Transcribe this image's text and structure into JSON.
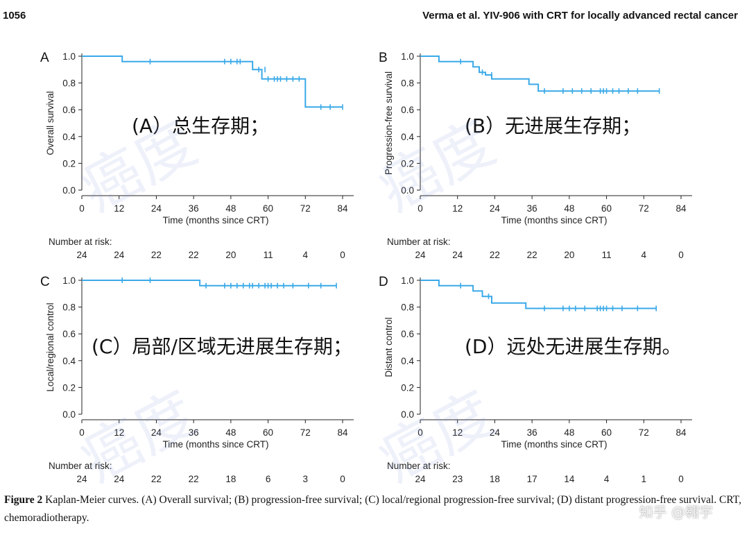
{
  "header": {
    "page_number": "1056",
    "running_title": "Verma et al. YIV-906 with CRT for locally advanced rectal cancer"
  },
  "colors": {
    "curve": "#39a9e8",
    "axis": "#222222"
  },
  "chart_data": [
    {
      "type": "line",
      "panel_letter": "A",
      "overlay_label": "(A）总生存期；",
      "ylabel": "Overall survival",
      "xlabel": "Time (months since CRT)",
      "xlim": [
        0,
        84
      ],
      "ylim": [
        0,
        1
      ],
      "x_ticks": [
        "0",
        "12",
        "24",
        "36",
        "48",
        "60",
        "72",
        "84"
      ],
      "y_ticks": [
        "0.0",
        "0.2",
        "0.4",
        "0.6",
        "0.8",
        "1.0"
      ],
      "step_points": [
        [
          0,
          1.0
        ],
        [
          13,
          1.0
        ],
        [
          13,
          0.96
        ],
        [
          55,
          0.96
        ],
        [
          55,
          0.9
        ],
        [
          58,
          0.9
        ],
        [
          58,
          0.83
        ],
        [
          61,
          0.83
        ],
        [
          72,
          0.83
        ],
        [
          72,
          0.62
        ],
        [
          84,
          0.62
        ]
      ],
      "censor_marks": [
        [
          22,
          0.96
        ],
        [
          46,
          0.96
        ],
        [
          48,
          0.96
        ],
        [
          50,
          0.96
        ],
        [
          51,
          0.96
        ],
        [
          57,
          0.9
        ],
        [
          59,
          0.9
        ],
        [
          60,
          0.83
        ],
        [
          62,
          0.83
        ],
        [
          63,
          0.83
        ],
        [
          64,
          0.83
        ],
        [
          66,
          0.83
        ],
        [
          68,
          0.83
        ],
        [
          70,
          0.83
        ],
        [
          77,
          0.62
        ],
        [
          80,
          0.62
        ],
        [
          84,
          0.62
        ]
      ],
      "risk_label": "Number at risk:",
      "risk_times": [
        0,
        12,
        24,
        36,
        48,
        60,
        72,
        84
      ],
      "risk_values": [
        "24",
        "24",
        "22",
        "22",
        "20",
        "11",
        "4",
        "0"
      ]
    },
    {
      "type": "line",
      "panel_letter": "B",
      "overlay_label": "(B）无进展生存期；",
      "ylabel": "Progression-free survival",
      "xlabel": "Time (months since CRT)",
      "xlim": [
        0,
        84
      ],
      "ylim": [
        0,
        1
      ],
      "x_ticks": [
        "0",
        "12",
        "24",
        "36",
        "48",
        "60",
        "72",
        "84"
      ],
      "y_ticks": [
        "0.0",
        "0.2",
        "0.4",
        "0.6",
        "0.8",
        "1.0"
      ],
      "step_points": [
        [
          0,
          1.0
        ],
        [
          6,
          1.0
        ],
        [
          6,
          0.96
        ],
        [
          17,
          0.96
        ],
        [
          17,
          0.92
        ],
        [
          19,
          0.92
        ],
        [
          19,
          0.88
        ],
        [
          21,
          0.88
        ],
        [
          21,
          0.86
        ],
        [
          23,
          0.86
        ],
        [
          23,
          0.83
        ],
        [
          35,
          0.83
        ],
        [
          35,
          0.79
        ],
        [
          38,
          0.79
        ],
        [
          38,
          0.74
        ],
        [
          77,
          0.74
        ]
      ],
      "censor_marks": [
        [
          13,
          0.96
        ],
        [
          20,
          0.88
        ],
        [
          23,
          0.86
        ],
        [
          40,
          0.74
        ],
        [
          46,
          0.74
        ],
        [
          49,
          0.74
        ],
        [
          52,
          0.74
        ],
        [
          55,
          0.74
        ],
        [
          58,
          0.74
        ],
        [
          59,
          0.74
        ],
        [
          60,
          0.74
        ],
        [
          62,
          0.74
        ],
        [
          64,
          0.74
        ],
        [
          67,
          0.74
        ],
        [
          70,
          0.74
        ],
        [
          77,
          0.74
        ]
      ],
      "risk_label": "Number at risk:",
      "risk_times": [
        0,
        12,
        24,
        36,
        48,
        60,
        72,
        84
      ],
      "risk_values": [
        "24",
        "24",
        "22",
        "22",
        "20",
        "11",
        "4",
        "0"
      ]
    },
    {
      "type": "line",
      "panel_letter": "C",
      "overlay_label": "(C）局部/区域无进展生存期；",
      "ylabel": "Local/regional control",
      "xlabel": "Time (months since CRT)",
      "xlim": [
        0,
        84
      ],
      "ylim": [
        0,
        1
      ],
      "x_ticks": [
        "0",
        "12",
        "24",
        "36",
        "48",
        "60",
        "72",
        "84"
      ],
      "y_ticks": [
        "0.0",
        "0.2",
        "0.4",
        "0.6",
        "0.8",
        "1.0"
      ],
      "step_points": [
        [
          0,
          1.0
        ],
        [
          38,
          1.0
        ],
        [
          38,
          0.96
        ],
        [
          82,
          0.96
        ]
      ],
      "censor_marks": [
        [
          13,
          1.0
        ],
        [
          22,
          1.0
        ],
        [
          40,
          0.96
        ],
        [
          46,
          0.96
        ],
        [
          48,
          0.96
        ],
        [
          50,
          0.96
        ],
        [
          52,
          0.96
        ],
        [
          54,
          0.96
        ],
        [
          55,
          0.96
        ],
        [
          57,
          0.96
        ],
        [
          59,
          0.96
        ],
        [
          60,
          0.96
        ],
        [
          61,
          0.96
        ],
        [
          63,
          0.96
        ],
        [
          65,
          0.96
        ],
        [
          68,
          0.96
        ],
        [
          73,
          0.96
        ],
        [
          77,
          0.96
        ],
        [
          82,
          0.96
        ]
      ],
      "risk_label": "Number at risk:",
      "risk_times": [
        0,
        12,
        24,
        36,
        48,
        60,
        72,
        84
      ],
      "risk_values": [
        "24",
        "24",
        "22",
        "22",
        "18",
        "6",
        "3",
        "0"
      ]
    },
    {
      "type": "line",
      "panel_letter": "D",
      "overlay_label": "(D）远处无进展生存期。",
      "ylabel": "Distant control",
      "xlabel": "Time (months since CRT)",
      "xlim": [
        0,
        84
      ],
      "ylim": [
        0,
        1
      ],
      "x_ticks": [
        "0",
        "12",
        "24",
        "36",
        "48",
        "60",
        "72",
        "84"
      ],
      "y_ticks": [
        "0.0",
        "0.2",
        "0.4",
        "0.6",
        "0.8",
        "1.0"
      ],
      "step_points": [
        [
          0,
          1.0
        ],
        [
          6,
          1.0
        ],
        [
          6,
          0.96
        ],
        [
          17,
          0.96
        ],
        [
          17,
          0.92
        ],
        [
          20,
          0.92
        ],
        [
          20,
          0.88
        ],
        [
          23,
          0.88
        ],
        [
          23,
          0.83
        ],
        [
          34,
          0.83
        ],
        [
          34,
          0.79
        ],
        [
          76,
          0.79
        ]
      ],
      "censor_marks": [
        [
          13,
          0.96
        ],
        [
          22,
          0.88
        ],
        [
          40,
          0.79
        ],
        [
          46,
          0.79
        ],
        [
          48,
          0.79
        ],
        [
          50,
          0.79
        ],
        [
          53,
          0.79
        ],
        [
          57,
          0.79
        ],
        [
          58,
          0.79
        ],
        [
          59,
          0.79
        ],
        [
          60,
          0.79
        ],
        [
          62,
          0.79
        ],
        [
          65,
          0.79
        ],
        [
          70,
          0.79
        ],
        [
          76,
          0.79
        ]
      ],
      "risk_label": "Number at risk:",
      "risk_times": [
        0,
        12,
        24,
        36,
        48,
        60,
        72,
        84
      ],
      "risk_values": [
        "24",
        "23",
        "18",
        "17",
        "14",
        "4",
        "1",
        "0"
      ]
    }
  ],
  "caption": {
    "figure_label": "Figure 2",
    "text": "Kaplan-Meier curves. (A) Overall survival; (B) progression-free survival; (C) local/regional progression-free survival; (D) distant progression-free survival. CRT, chemoradiotherapy."
  },
  "watermark": {
    "text": "癌度",
    "credit": "知乎 @翱宇"
  }
}
